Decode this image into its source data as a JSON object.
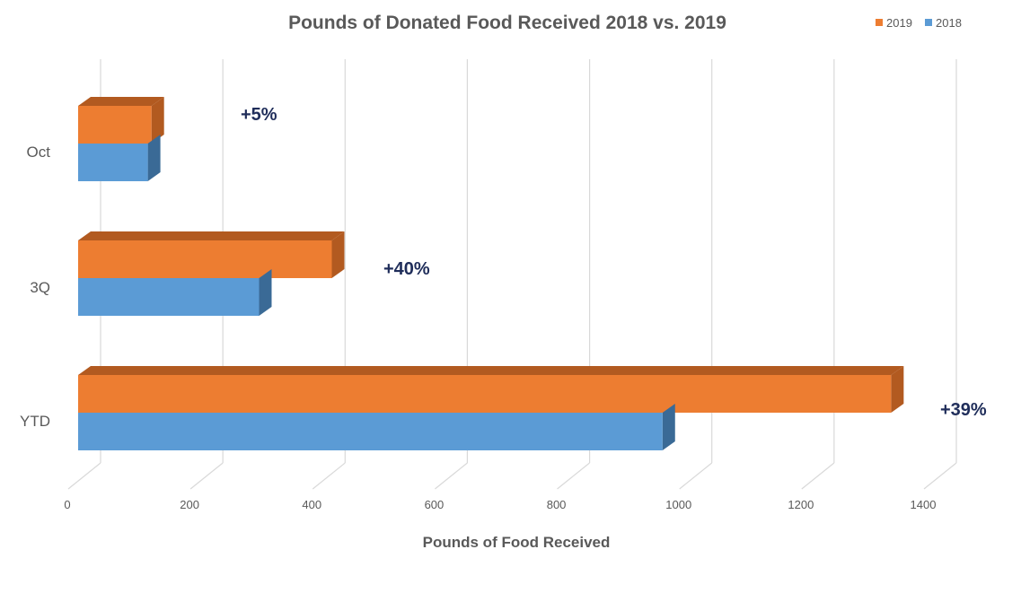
{
  "chart_data": {
    "type": "bar",
    "orientation": "horizontal",
    "title": "Pounds of Donated Food Received 2018 vs. 2019",
    "xlabel": "Pounds of Food Received",
    "ylabel": "",
    "xlim": [
      0,
      1400
    ],
    "ticks": [
      0,
      200,
      400,
      600,
      800,
      1000,
      1200,
      1400
    ],
    "categories": [
      "Oct",
      "3Q",
      "YTD"
    ],
    "series": [
      {
        "name": "2019",
        "color": "#ed7d31",
        "side_color": "#b25a20",
        "values": [
          120,
          415,
          1330
        ]
      },
      {
        "name": "2018",
        "color": "#5b9bd5",
        "side_color": "#3a6a96",
        "values": [
          114,
          296,
          956
        ]
      }
    ],
    "legend": {
      "position": "top-right",
      "items": [
        "2019",
        "2018"
      ]
    },
    "annotations": [
      "+5%",
      "+40%",
      "+39%"
    ],
    "grid": true
  }
}
